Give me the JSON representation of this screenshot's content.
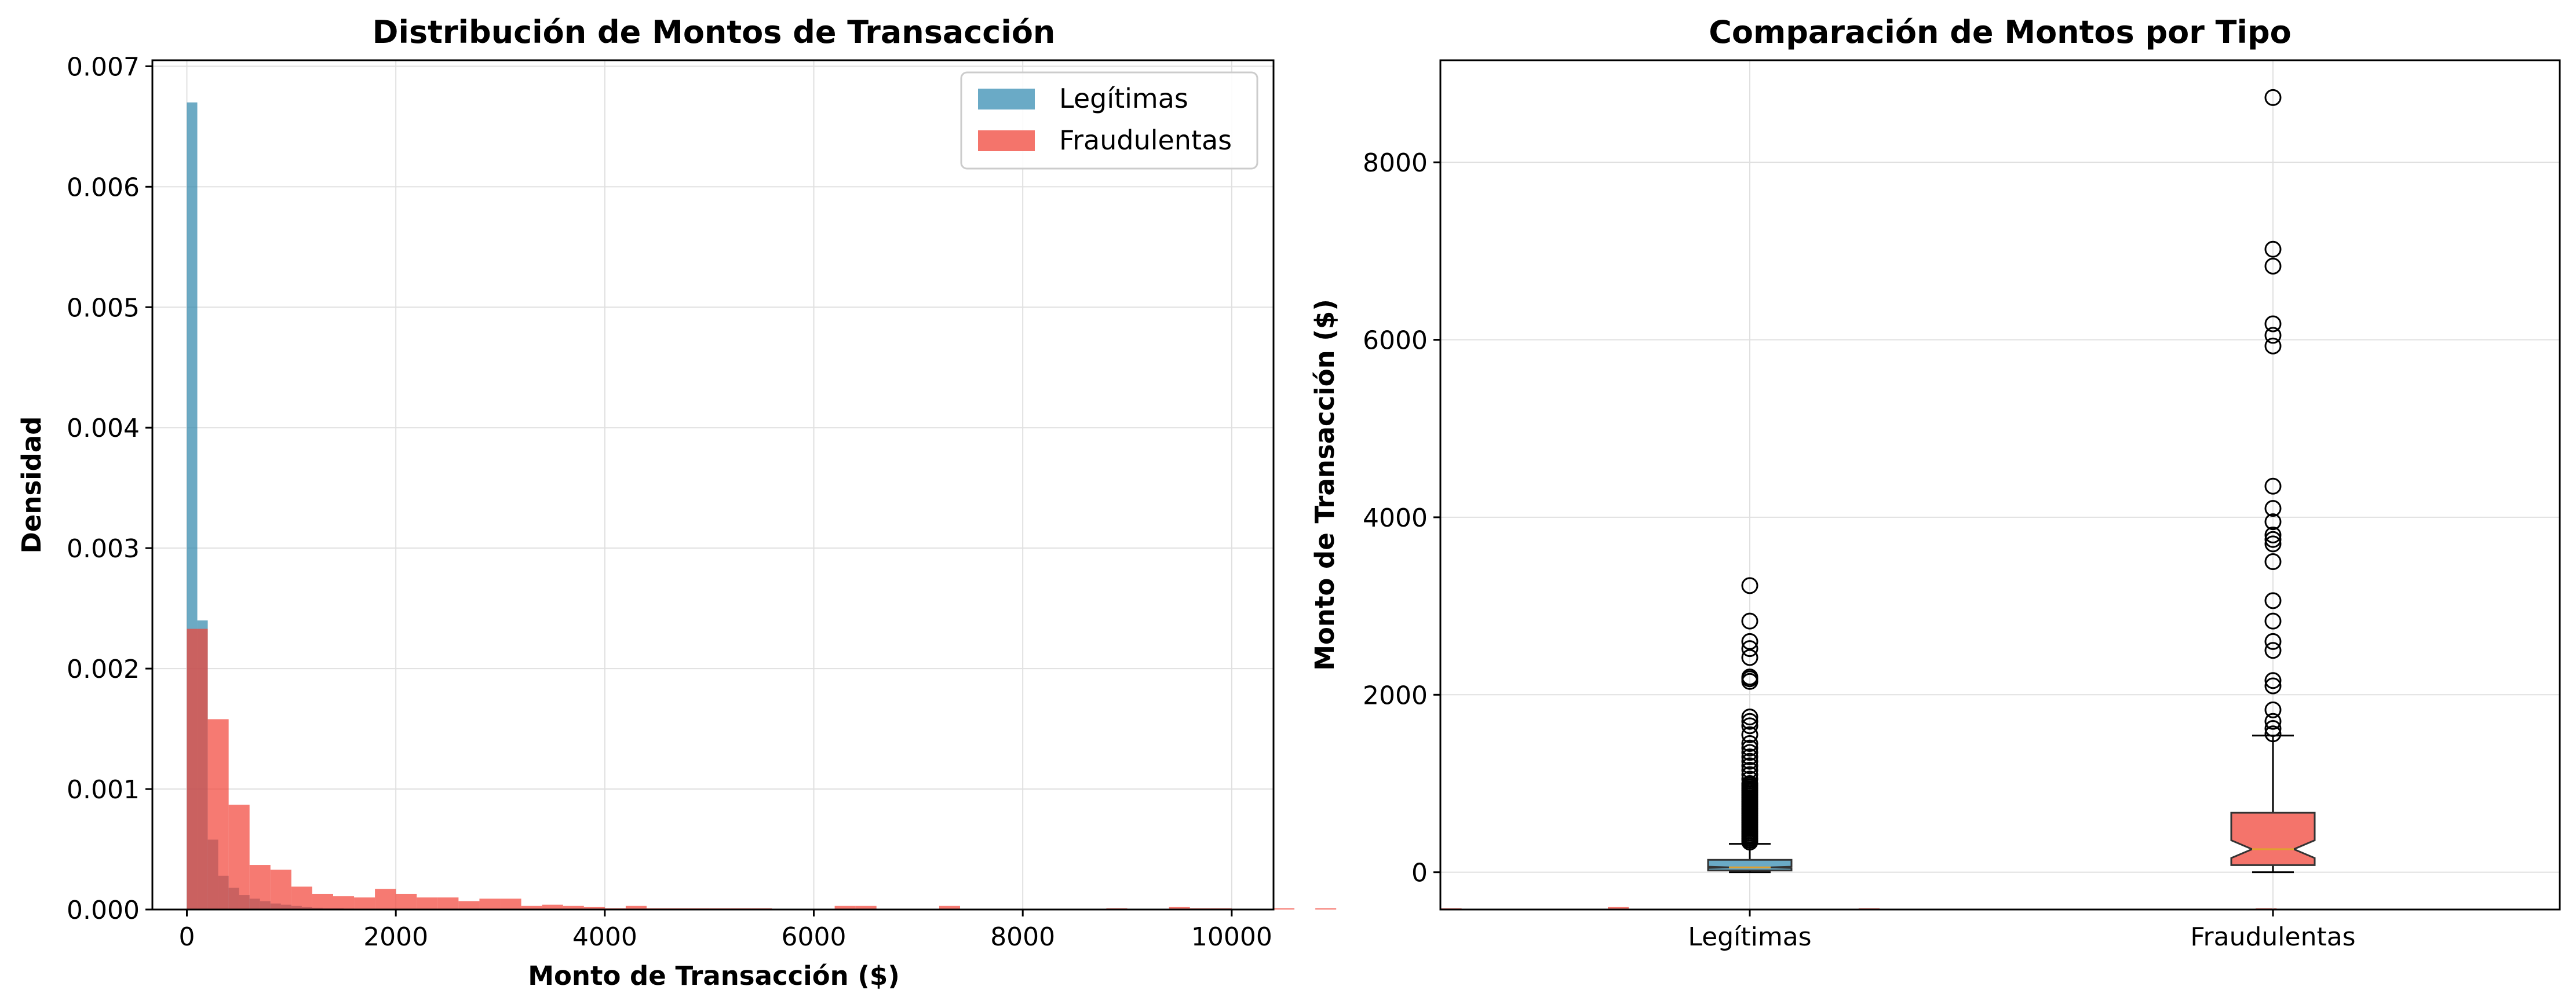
{
  "colors": {
    "legit": "#2E86AB",
    "fraud": "#F24236",
    "legit_fill": "#6aaac6",
    "fraud_fill": "#f4746b"
  },
  "chart_data": [
    {
      "type": "histogram",
      "title": "Distribución de Montos de Transacción",
      "xlabel": "Monto de Transacción ($)",
      "ylabel": "Densidad",
      "xlim": [
        -330,
        10400
      ],
      "ylim": [
        0,
        0.00705
      ],
      "xticks": [
        0,
        2000,
        4000,
        6000,
        8000,
        10000
      ],
      "yticks": [
        "0.000",
        "0.001",
        "0.002",
        "0.003",
        "0.004",
        "0.005",
        "0.006",
        "0.007"
      ],
      "grid": true,
      "legend_position": "top-right",
      "series": [
        {
          "name": "Legítimas",
          "bin_width": 100,
          "bins_start": 0,
          "values": [
            0.0067,
            0.0024,
            0.00058,
            0.00028,
            0.00018,
            0.00012,
            9e-05,
            7e-05,
            5e-05,
            4e-05,
            3e-05,
            2e-05,
            1.5e-05,
            1e-05,
            1e-05,
            8e-06,
            6e-06,
            5e-06,
            4e-06,
            3e-06
          ]
        },
        {
          "name": "Fraudulentas",
          "bin_width": 200,
          "bins_start": 0,
          "values": [
            0.00233,
            0.00158,
            0.00087,
            0.00037,
            0.00033,
            0.00019,
            0.00013,
            0.00011,
            0.0001,
            0.00017,
            0.00013,
            0.0001,
            0.0001,
            7e-05,
            9e-05,
            9e-05,
            3e-05,
            4e-05,
            3e-05,
            2e-05,
            1e-05,
            3e-05,
            1e-05,
            1e-05,
            1e-05,
            1e-05,
            1e-05,
            1e-05,
            0,
            0,
            0,
            3e-05,
            3e-05,
            0,
            0,
            0,
            3e-05,
            0,
            0,
            0,
            0,
            0,
            0,
            0,
            1e-05,
            0,
            0,
            2e-05,
            1e-05,
            1e-05,
            0,
            0,
            1e-05,
            0,
            1e-05,
            0,
            0,
            0,
            0,
            0,
            1e-05,
            0,
            0,
            0,
            0,
            0,
            0,
            0,
            2e-05,
            0,
            0,
            0,
            0,
            0,
            0,
            0,
            0,
            0,
            0,
            0,
            1e-05,
            0,
            0,
            0,
            0,
            0,
            0,
            0,
            0,
            0,
            0,
            0,
            0,
            0,
            0,
            0,
            0,
            0,
            0,
            1e-05
          ]
        }
      ]
    },
    {
      "type": "box",
      "title": "Comparación de Montos por Tipo",
      "xlabel": "",
      "ylabel": "Monto de Transacción ($)",
      "categories": [
        "Legítimas",
        "Fraudulentas"
      ],
      "ylim": [
        -420,
        9150
      ],
      "yticks": [
        0,
        2000,
        4000,
        6000,
        8000
      ],
      "grid": true,
      "series": [
        {
          "name": "Legítimas",
          "whisker_low": 0,
          "q1": 20,
          "median": 55,
          "q3": 140,
          "notch_low": 48,
          "notch_high": 62,
          "whisker_high": 320,
          "outliers": [
            340,
            360,
            380,
            400,
            420,
            440,
            460,
            480,
            500,
            520,
            540,
            560,
            580,
            600,
            620,
            640,
            660,
            680,
            700,
            720,
            740,
            760,
            780,
            800,
            820,
            840,
            860,
            880,
            900,
            920,
            940,
            960,
            980,
            1000,
            1050,
            1100,
            1150,
            1200,
            1250,
            1300,
            1350,
            1400,
            1450,
            1550,
            1650,
            1700,
            1750,
            2150,
            2180,
            2200,
            2420,
            2520,
            2600,
            2830,
            3230
          ]
        },
        {
          "name": "Fraudulentas",
          "whisker_low": 0,
          "q1": 80,
          "median": 260,
          "q3": 670,
          "notch_low": 160,
          "notch_high": 360,
          "whisker_high": 1540,
          "outliers": [
            1560,
            1620,
            1700,
            1830,
            2100,
            2160,
            2500,
            2600,
            2830,
            3060,
            3500,
            3700,
            3750,
            3800,
            3950,
            4100,
            4350,
            5930,
            6050,
            6180,
            6830,
            7020,
            8730
          ]
        }
      ]
    }
  ]
}
